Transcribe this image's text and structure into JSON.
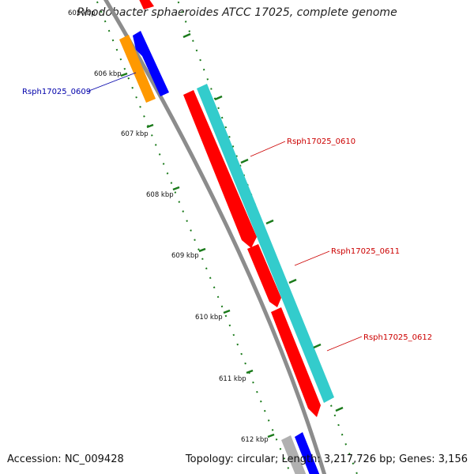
{
  "title": "Rhodobacter sphaeroides ATCC 17025, complete genome",
  "accession": "Accession: NC_009428",
  "summary": "Topology: circular; Length: 3,217,726 bp; Genes: 3,156",
  "colors": {
    "backbone": "#8c8c8c",
    "tick": "#1a7a1a",
    "forward_gene": "#ff0000",
    "reverse_gene": "#0000ff",
    "cds_teal": "#33cccc",
    "orange_gene": "#ff9900",
    "gray_gene": "#b0b0b0",
    "label_red": "#cc0000",
    "label_blue": "#0000aa"
  },
  "ticks": [
    {
      "label": "605 kbp",
      "value": 605
    },
    {
      "label": "606 kbp",
      "value": 606
    },
    {
      "label": "607 kbp",
      "value": 607
    },
    {
      "label": "608 kbp",
      "value": 608
    },
    {
      "label": "609 kbp",
      "value": 609
    },
    {
      "label": "610 kbp",
      "value": 610
    },
    {
      "label": "611 kbp",
      "value": 611
    },
    {
      "label": "612 kbp",
      "value": 612
    }
  ],
  "genes": [
    {
      "label": "Rsph17025_0609",
      "color": "label_blue"
    },
    {
      "label": "Rsph17025_0610",
      "color": "label_red"
    },
    {
      "label": "Rsph17025_0611",
      "color": "label_red"
    },
    {
      "label": "Rsph17025_0612",
      "color": "label_red"
    }
  ]
}
